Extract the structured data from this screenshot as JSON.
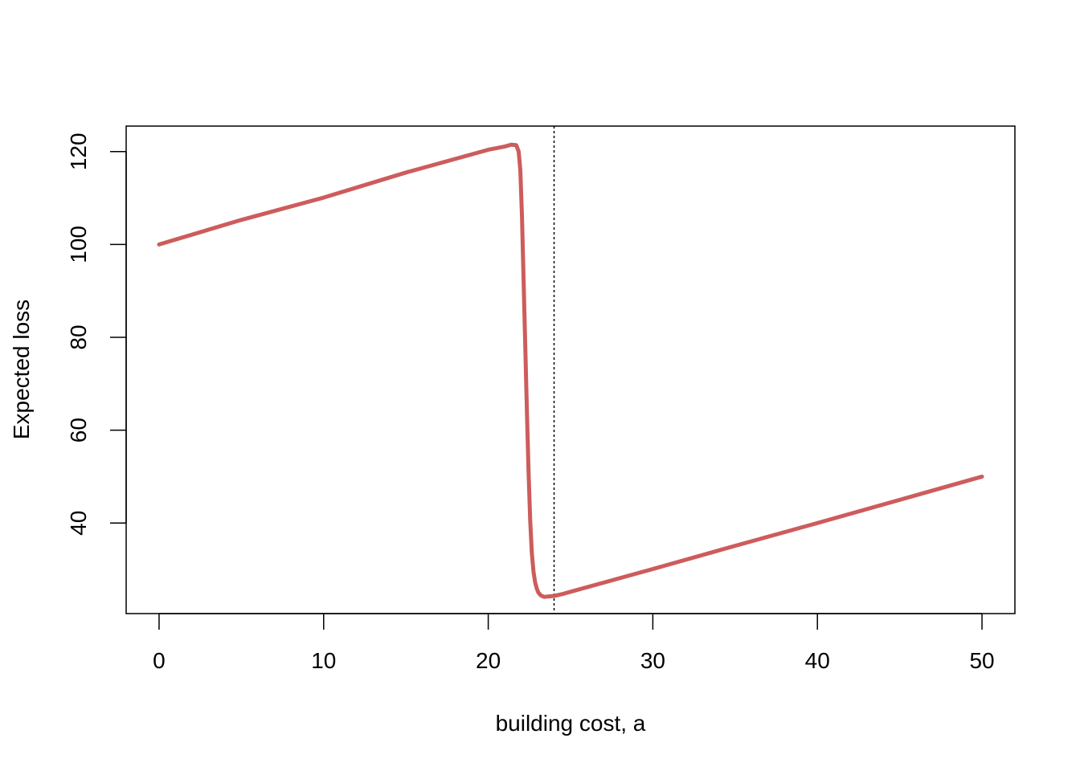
{
  "chart_data": {
    "type": "line",
    "title": "",
    "xlabel": "building cost, a",
    "ylabel": "Expected loss",
    "xlim": [
      -2,
      52
    ],
    "ylim": [
      20.5,
      125.5
    ],
    "x_ticks": [
      0,
      10,
      20,
      30,
      40,
      50
    ],
    "y_ticks": [
      40,
      60,
      80,
      100,
      120
    ],
    "grid": false,
    "legend": "none",
    "series": [
      {
        "color": "#CD5C5C",
        "x": [
          0,
          5,
          10,
          15,
          20,
          21.0,
          21.4,
          21.7,
          21.85,
          21.95,
          22.05,
          22.15,
          22.25,
          22.35,
          22.45,
          22.55,
          22.65,
          22.75,
          22.85,
          22.95,
          23.05,
          23.2,
          23.4,
          23.7,
          24.0,
          24.5,
          25,
          30,
          35,
          40,
          45,
          50
        ],
        "y": [
          100,
          105.3,
          110.1,
          115.5,
          120.4,
          121.1,
          121.5,
          121.4,
          120.0,
          116.0,
          106.0,
          92.0,
          78.0,
          64.0,
          51.0,
          40.5,
          33.5,
          29.5,
          27.2,
          25.9,
          25.0,
          24.4,
          24.1,
          24.2,
          24.3,
          24.7,
          25.2,
          30.1,
          35.1,
          40.0,
          45.0,
          50.0
        ]
      }
    ],
    "reference_lines": [
      {
        "orientation": "vertical",
        "x": 24,
        "style": "dotted",
        "color": "#000000"
      }
    ]
  }
}
